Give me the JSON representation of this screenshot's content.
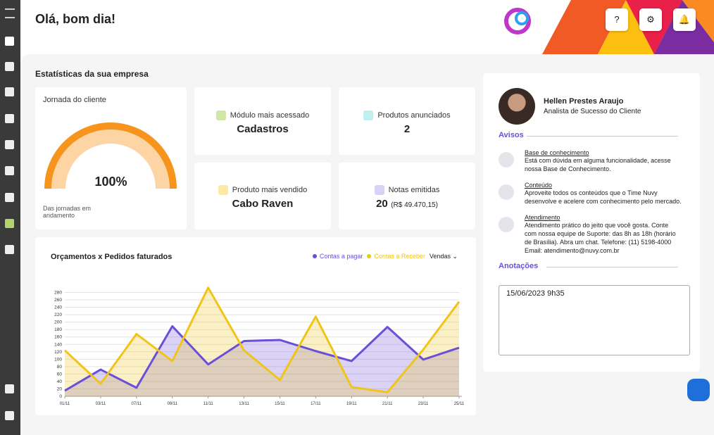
{
  "header": {
    "title": "Olá, bom dia!",
    "help": "?"
  },
  "stats": {
    "title": "Estatísticas da sua empresa",
    "journey": {
      "title": "Jornada do cliente",
      "value": 100,
      "value_label": "100%",
      "caption": "Das jornadas em andamento"
    },
    "cards": [
      {
        "label": "Módulo mais acessado",
        "value": "Cadastros"
      },
      {
        "label": "Produtos anunciados",
        "value": "2"
      },
      {
        "label": "Produto mais vendido",
        "value": "Cabo Raven"
      },
      {
        "label": "Notas emitidas",
        "value": "20",
        "extra": "(R$ 49.470,15)"
      }
    ]
  },
  "chart_data": {
    "type": "line",
    "title": "Orçamentos x Pedidos faturados",
    "dropdown": "Vendas",
    "categories": [
      "01/11",
      "03/11",
      "07/11",
      "09/11",
      "11/11",
      "13/11",
      "15/11",
      "17/11",
      "19/11",
      "21/11",
      "23/11",
      "25/11"
    ],
    "series": [
      {
        "name": "Contas a pagar",
        "color": "#6a4fd8",
        "values": [
          15,
          72,
          23,
          189,
          86,
          149,
          152,
          122,
          95,
          187,
          99,
          131
        ]
      },
      {
        "name": "Contas a Receber",
        "color": "#f0c419",
        "values": [
          124,
          34,
          168,
          95,
          293,
          124,
          44,
          215,
          25,
          11,
          126,
          255
        ]
      }
    ],
    "ylim": [
      0,
      300
    ],
    "yticks": [
      0,
      20,
      40,
      60,
      80,
      100,
      120,
      140,
      160,
      180,
      200,
      220,
      240,
      260,
      280
    ],
    "grid": true
  },
  "profile": {
    "name": "Hellen Prestes Araujo",
    "role": "Analista de Sucesso do Cliente"
  },
  "avisos": {
    "title": "Avisos",
    "items": [
      {
        "title": "Base de conhecimento",
        "text": "Está com dúvida em alguma funcionalidade, acesse nossa Base de Conhecimento."
      },
      {
        "title": "Conteúdo",
        "text": "Aproveite todos os conteúdos que o Time Nuvy desenvolve e acelere com conhecimento pelo mercado."
      },
      {
        "title": "Atendimento",
        "text": "Atendimento prático do jeito que você gosta. Conte com nossa equipe de Suporte: das 8h as 18h (horário de Brasília). Abra um chat. Telefone: (11) 5198-4000 Email: atendimento@nuvy.com.br"
      }
    ]
  },
  "notes": {
    "title": "Anotações",
    "text": "15/06/2023 9h35"
  }
}
